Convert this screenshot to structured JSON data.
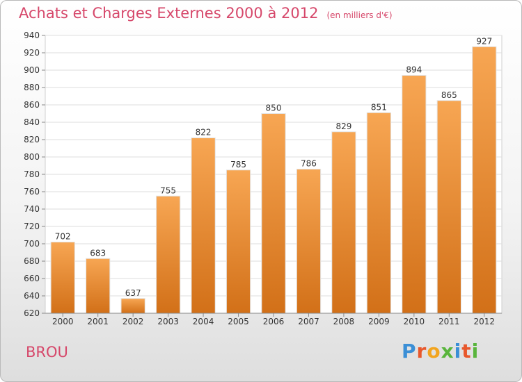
{
  "header": {
    "title": "Achats et Charges Externes 2000 à 2012",
    "subtitle": "(en milliers d'€)"
  },
  "footer": {
    "city": "BROU",
    "brand": "Proxiti",
    "brand_colors": [
      "#3b8fd6",
      "#e8582c",
      "#f2a51f",
      "#59b53c",
      "#3b8fd6",
      "#e8582c",
      "#59b53c"
    ]
  },
  "colors": {
    "bar_top": "#f7a653",
    "bar_bottom": "#d27018",
    "title": "#d6476a"
  },
  "chart_data": {
    "type": "bar",
    "categories": [
      "2000",
      "2001",
      "2002",
      "2003",
      "2004",
      "2005",
      "2006",
      "2007",
      "2008",
      "2009",
      "2010",
      "2011",
      "2012"
    ],
    "values": [
      702,
      683,
      637,
      755,
      822,
      785,
      850,
      786,
      829,
      851,
      894,
      865,
      927
    ],
    "title": "Achats et Charges Externes 2000 à 2012",
    "subtitle": "(en milliers d'€)",
    "xlabel": "",
    "ylabel": "",
    "ylim": [
      620,
      940
    ],
    "yticks": [
      620,
      640,
      660,
      680,
      700,
      720,
      740,
      760,
      780,
      800,
      820,
      840,
      860,
      880,
      900,
      920,
      940
    ],
    "grid": true,
    "legend": "none"
  }
}
